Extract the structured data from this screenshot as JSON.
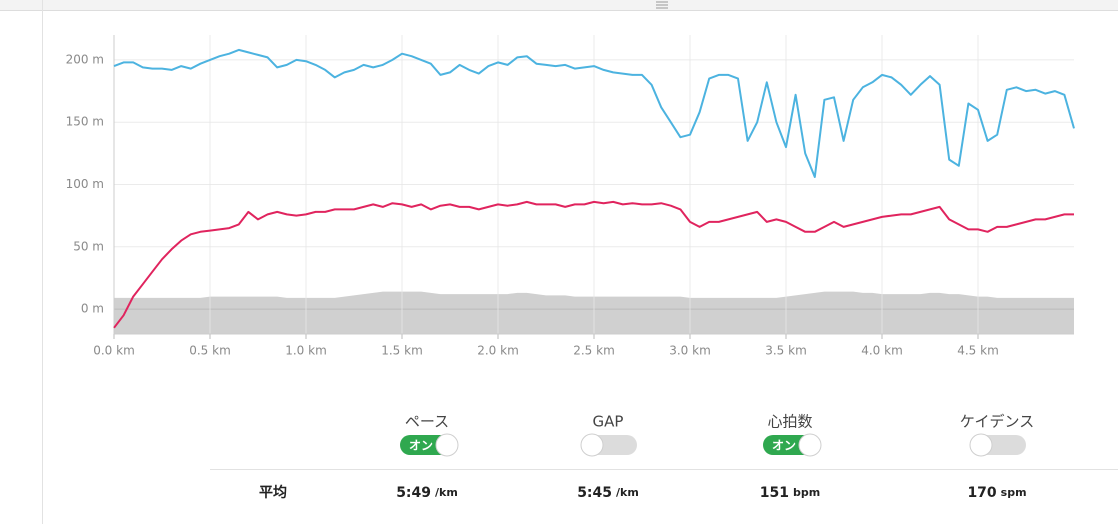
{
  "chart_data": {
    "type": "line",
    "x": [
      0,
      0.05,
      0.1,
      0.15,
      0.2,
      0.25,
      0.3,
      0.35,
      0.4,
      0.45,
      0.5,
      0.55,
      0.6,
      0.65,
      0.7,
      0.75,
      0.8,
      0.85,
      0.9,
      0.95,
      1,
      1.05,
      1.1,
      1.15,
      1.2,
      1.25,
      1.3,
      1.35,
      1.4,
      1.45,
      1.5,
      1.55,
      1.6,
      1.65,
      1.7,
      1.75,
      1.8,
      1.85,
      1.9,
      1.95,
      2,
      2.05,
      2.1,
      2.15,
      2.2,
      2.25,
      2.3,
      2.35,
      2.4,
      2.45,
      2.5,
      2.55,
      2.6,
      2.65,
      2.7,
      2.75,
      2.8,
      2.85,
      2.9,
      2.95,
      3,
      3.05,
      3.1,
      3.15,
      3.2,
      3.25,
      3.3,
      3.35,
      3.4,
      3.45,
      3.5,
      3.55,
      3.6,
      3.65,
      3.7,
      3.75,
      3.8,
      3.85,
      3.9,
      3.95,
      4,
      4.05,
      4.1,
      4.15,
      4.2,
      4.25,
      4.3,
      4.35,
      4.4,
      4.45,
      4.5,
      4.55,
      4.6,
      4.65,
      4.7,
      4.75,
      4.8,
      4.85,
      4.9,
      4.95,
      5
    ],
    "xlim": [
      0,
      5
    ],
    "xticks": [
      {
        "value": 0,
        "label": "0.0 km"
      },
      {
        "value": 0.5,
        "label": "0.5 km"
      },
      {
        "value": 1,
        "label": "1.0 km"
      },
      {
        "value": 1.5,
        "label": "1.5 km"
      },
      {
        "value": 2,
        "label": "2.0 km"
      },
      {
        "value": 2.5,
        "label": "2.5 km"
      },
      {
        "value": 3,
        "label": "3.0 km"
      },
      {
        "value": 3.5,
        "label": "3.5 km"
      },
      {
        "value": 4,
        "label": "4.0 km"
      },
      {
        "value": 4.5,
        "label": "4.5 km"
      }
    ],
    "ylim": [
      -20,
      220
    ],
    "yticks": [
      {
        "value": 0,
        "label": "0 m"
      },
      {
        "value": 50,
        "label": "50 m"
      },
      {
        "value": 100,
        "label": "100 m"
      },
      {
        "value": 150,
        "label": "150 m"
      },
      {
        "value": 200,
        "label": "200 m"
      }
    ],
    "grid": true,
    "series": [
      {
        "color": "#d0d0d0",
        "fill": true,
        "values": [
          9,
          9,
          9,
          9,
          9,
          9,
          9,
          9,
          9,
          9,
          10,
          10,
          10,
          10,
          10,
          10,
          10,
          10,
          9,
          9,
          9,
          9,
          9,
          9,
          10,
          11,
          12,
          13,
          14,
          14,
          14,
          14,
          14,
          13,
          12,
          12,
          12,
          12,
          12,
          12,
          12,
          12,
          13,
          13,
          12,
          11,
          11,
          11,
          10,
          10,
          10,
          10,
          10,
          10,
          10,
          10,
          10,
          10,
          10,
          10,
          9,
          9,
          9,
          9,
          9,
          9,
          9,
          9,
          9,
          9,
          10,
          11,
          12,
          13,
          14,
          14,
          14,
          14,
          13,
          13,
          12,
          12,
          12,
          12,
          12,
          13,
          13,
          12,
          12,
          11,
          10,
          10,
          9,
          9,
          9,
          9,
          9,
          9,
          9,
          9,
          9
        ]
      },
      {
        "color": "#4cb3e0",
        "values": [
          195,
          198,
          198,
          194,
          193,
          193,
          192,
          195,
          193,
          197,
          200,
          203,
          205,
          208,
          206,
          204,
          202,
          194,
          196,
          200,
          199,
          196,
          192,
          186,
          190,
          192,
          196,
          194,
          196,
          200,
          205,
          203,
          200,
          197,
          188,
          190,
          196,
          192,
          189,
          195,
          198,
          196,
          202,
          203,
          197,
          196,
          195,
          196,
          193,
          194,
          195,
          192,
          190,
          189,
          188,
          188,
          180,
          162,
          150,
          138,
          140,
          158,
          185,
          188,
          188,
          185,
          135,
          150,
          182,
          150,
          130,
          172,
          125,
          106,
          168,
          170,
          135,
          168,
          178,
          182,
          188,
          186,
          180,
          172,
          180,
          187,
          180,
          120,
          115,
          165,
          160,
          135,
          140,
          176,
          178,
          175,
          176,
          173,
          175,
          172,
          145
        ]
      },
      {
        "color": "#e0245e",
        "values": [
          -15,
          -5,
          10,
          20,
          30,
          40,
          48,
          55,
          60,
          62,
          63,
          64,
          65,
          68,
          78,
          72,
          76,
          78,
          76,
          75,
          76,
          78,
          78,
          80,
          80,
          80,
          82,
          84,
          82,
          85,
          84,
          82,
          84,
          80,
          83,
          84,
          82,
          82,
          80,
          82,
          84,
          83,
          84,
          86,
          84,
          84,
          84,
          82,
          84,
          84,
          86,
          85,
          86,
          84,
          85,
          84,
          84,
          85,
          83,
          80,
          70,
          66,
          70,
          70,
          72,
          74,
          76,
          78,
          70,
          72,
          70,
          66,
          62,
          62,
          66,
          70,
          66,
          68,
          70,
          72,
          74,
          75,
          76,
          76,
          78,
          80,
          82,
          72,
          68,
          64,
          64,
          62,
          66,
          66,
          68,
          70,
          72,
          72,
          74,
          76,
          76
        ]
      }
    ]
  },
  "controls": [
    {
      "label": "ペース",
      "state": "オン"
    },
    {
      "label": "GAP"
    },
    {
      "label": "心拍数",
      "state": "オン"
    },
    {
      "label": "ケイデンス"
    }
  ],
  "averages": {
    "label": "平均",
    "items": [
      {
        "value": "5:49",
        "unit": "/km"
      },
      {
        "value": "5:45",
        "unit": "/km"
      },
      {
        "value": "151",
        "unit": "bpm"
      },
      {
        "value": "170",
        "unit": "spm"
      }
    ]
  }
}
